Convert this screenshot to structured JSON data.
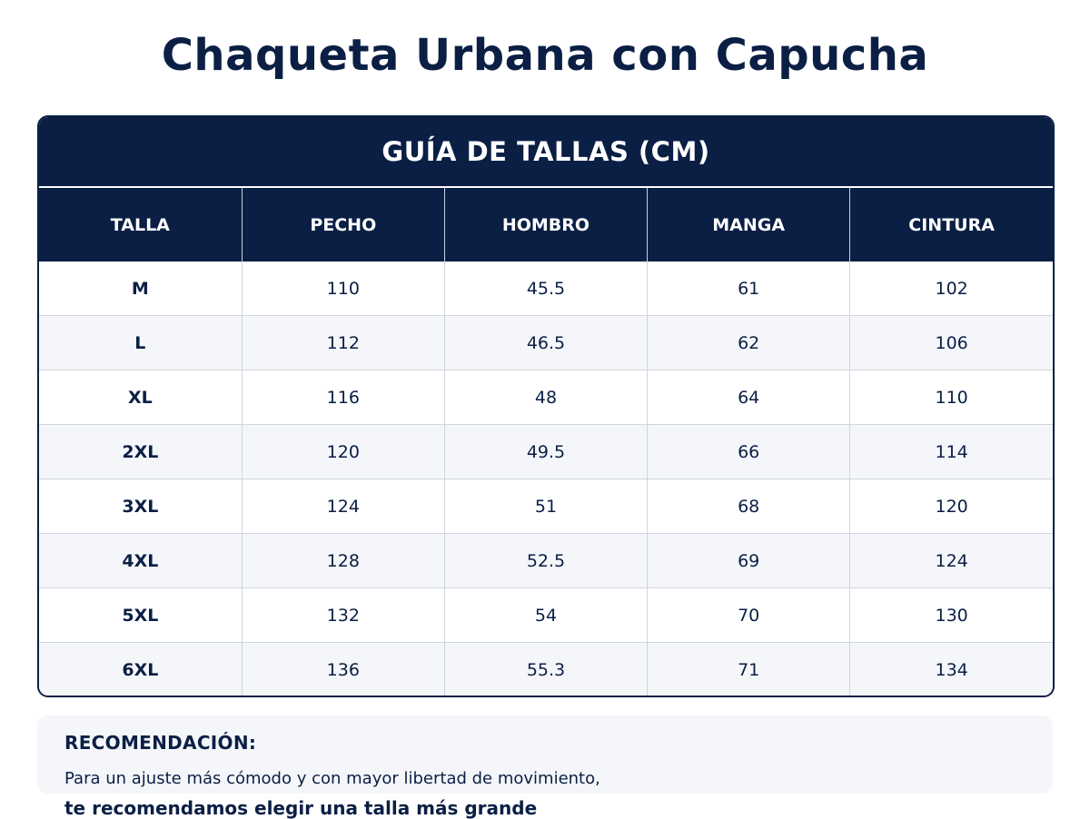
{
  "title": "Chaqueta Urbana con Capucha",
  "size_guide": {
    "heading": "GUÍA DE TALLAS (CM)",
    "columns": [
      "TALLA",
      "PECHO",
      "HOMBRO",
      "MANGA",
      "CINTURA"
    ],
    "rows": [
      [
        "M",
        "110",
        "45.5",
        "61",
        "102"
      ],
      [
        "L",
        "112",
        "46.5",
        "62",
        "106"
      ],
      [
        "XL",
        "116",
        "48",
        "64",
        "110"
      ],
      [
        "2XL",
        "120",
        "49.5",
        "66",
        "114"
      ],
      [
        "3XL",
        "124",
        "51",
        "68",
        "120"
      ],
      [
        "4XL",
        "128",
        "52.5",
        "69",
        "124"
      ],
      [
        "5XL",
        "132",
        "54",
        "70",
        "130"
      ],
      [
        "6XL",
        "136",
        "55.3",
        "71",
        "134"
      ]
    ]
  },
  "recommendation": {
    "title": "RECOMENDACIÓN:",
    "text": "Para un ajuste más cómodo y con mayor libertad de movimiento,",
    "emphasis": "te recomendamos elegir una talla más grande"
  },
  "colors": {
    "navy": "#0b1f45",
    "row_alt": "#f4f6f9",
    "border": "#cfd5df"
  }
}
